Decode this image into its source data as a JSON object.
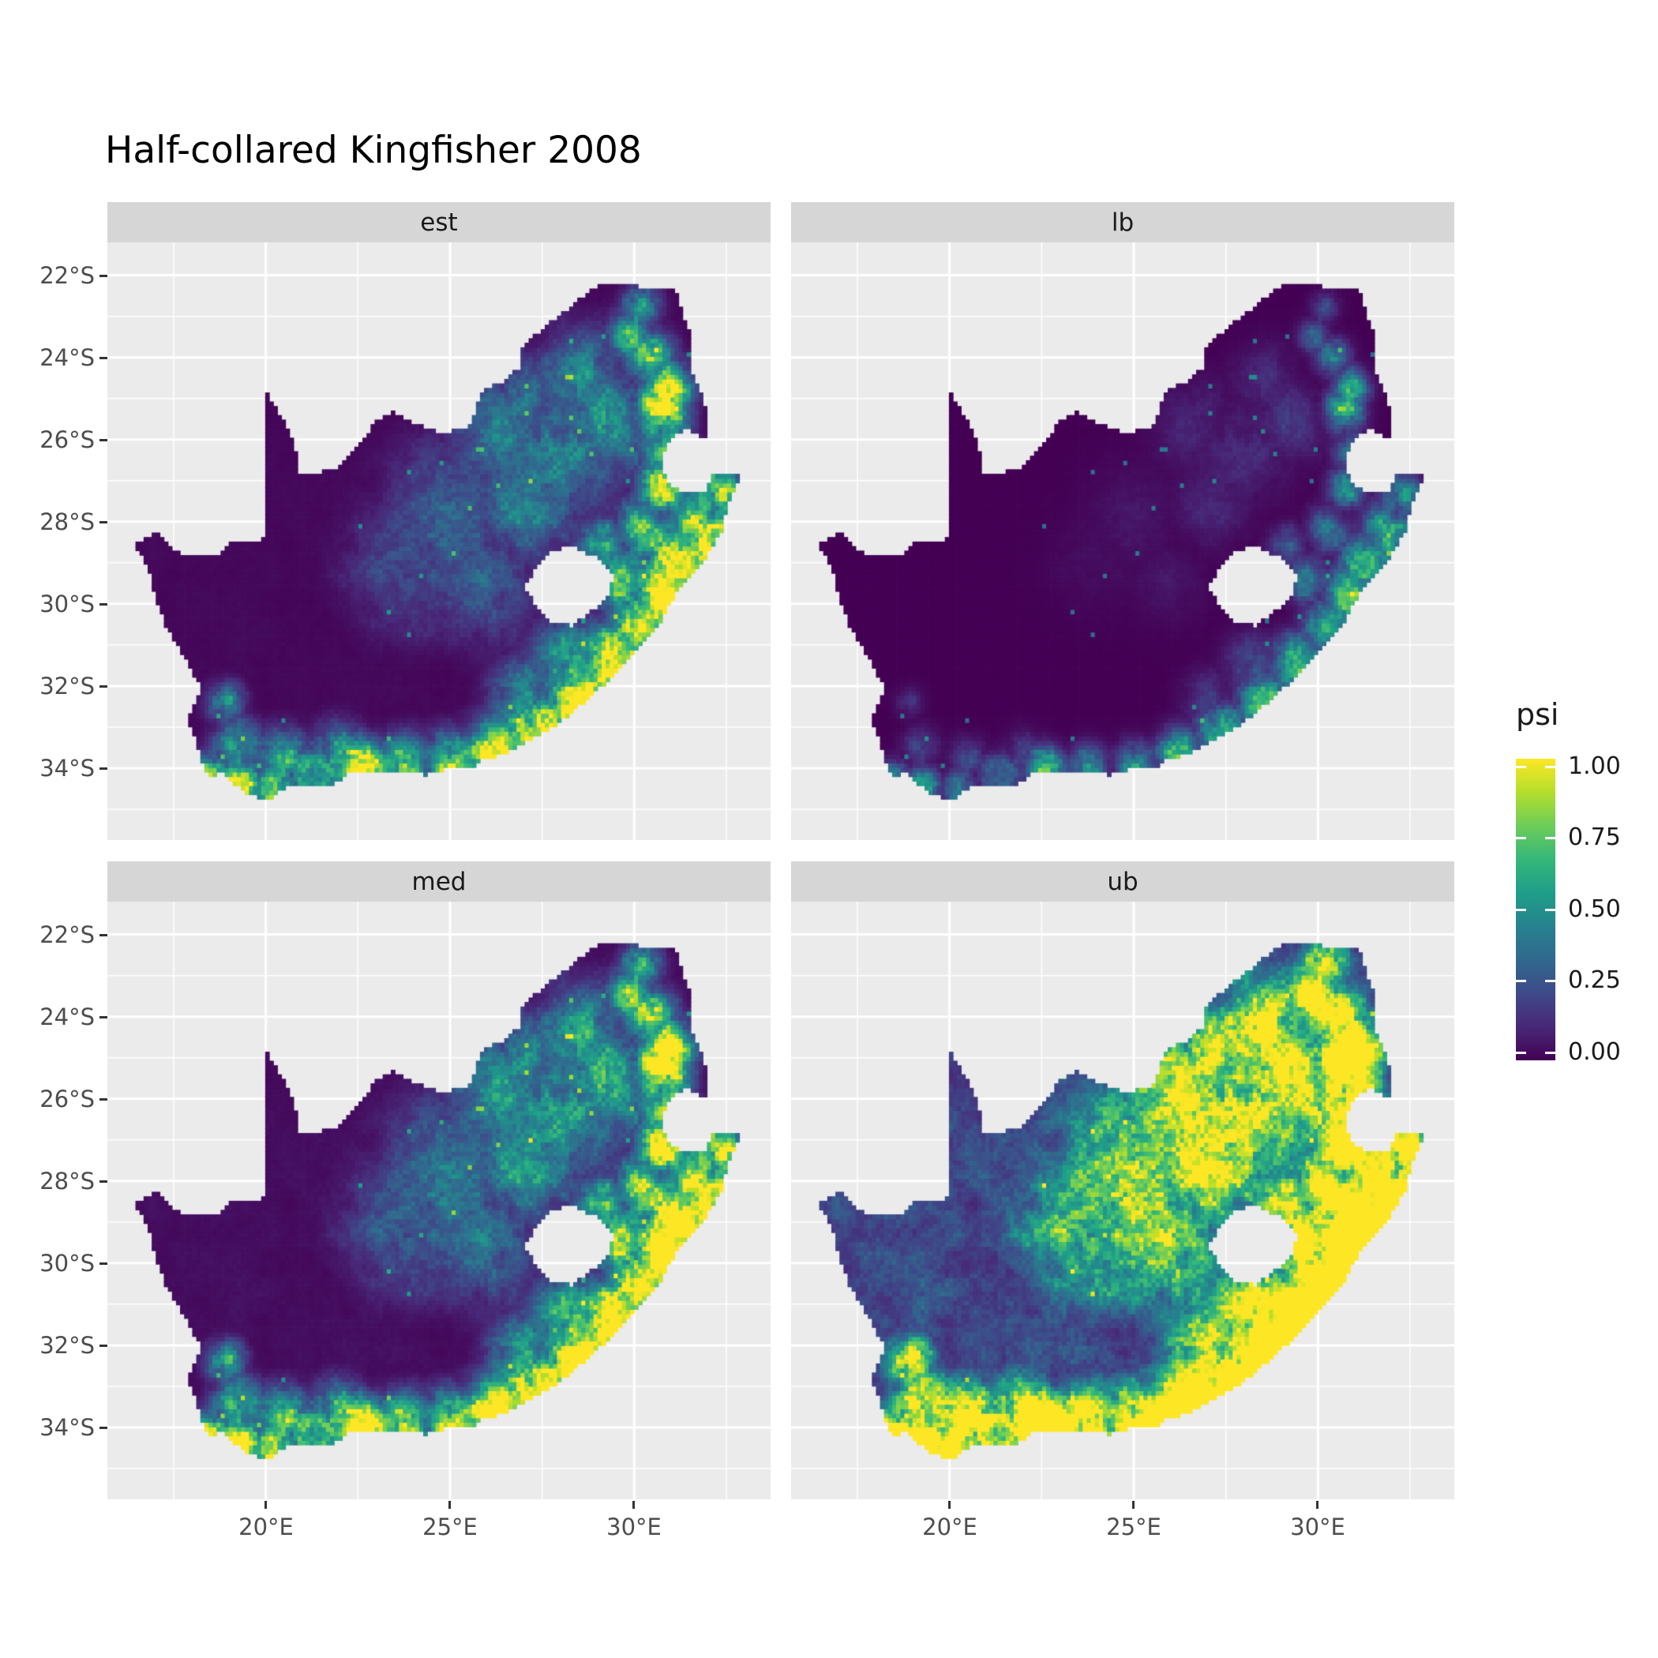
{
  "title": "Half-collared Kingfisher 2008",
  "chart_data": {
    "type": "heatmap",
    "subtype": "faceted raster map (species occupancy over South Africa)",
    "title": "Half-collared Kingfisher 2008",
    "facets": [
      {
        "key": "est",
        "label": "est"
      },
      {
        "key": "lb",
        "label": "lb"
      },
      {
        "key": "med",
        "label": "med"
      },
      {
        "key": "ub",
        "label": "ub"
      }
    ],
    "x_axis": {
      "range_lon": [
        15.7,
        33.7
      ],
      "tick_values": [
        20,
        25,
        30
      ],
      "tick_labels": [
        "20°E",
        "25°E",
        "30°E"
      ]
    },
    "y_axis": {
      "range_lat": [
        -35.75,
        -21.2
      ],
      "tick_values": [
        -22,
        -24,
        -26,
        -28,
        -30,
        -32,
        -34
      ],
      "tick_labels": [
        "22°S",
        "24°S",
        "26°S",
        "28°S",
        "30°S",
        "32°S",
        "34°S"
      ]
    },
    "legend": {
      "title": "psi",
      "tick_labels": [
        "1.00",
        "0.75",
        "0.50",
        "0.25",
        "0.00"
      ],
      "tick_values": [
        1.0,
        0.75,
        0.5,
        0.25,
        0.0
      ],
      "range": [
        0,
        1
      ],
      "position": "right"
    },
    "color_scale": {
      "name": "viridis",
      "stops": [
        {
          "t": 0.0,
          "color": "#440154"
        },
        {
          "t": 0.111,
          "color": "#482878"
        },
        {
          "t": 0.222,
          "color": "#3E4A89"
        },
        {
          "t": 0.333,
          "color": "#31688E"
        },
        {
          "t": 0.444,
          "color": "#26828E"
        },
        {
          "t": 0.556,
          "color": "#1F9E89"
        },
        {
          "t": 0.667,
          "color": "#35B779"
        },
        {
          "t": 0.778,
          "color": "#6DCD59"
        },
        {
          "t": 0.889,
          "color": "#B4DE2C"
        },
        {
          "t": 1.0,
          "color": "#FDE725"
        }
      ]
    },
    "style": {
      "panel_bg": "#EBEBEB",
      "strip_bg": "#D6D6D6",
      "grid_major": "#FFFFFF",
      "grid_minor": "#FFFFFF",
      "axis_text": "#4D4D4D",
      "strip_text": "#1A1A1A",
      "tick_mark": "#333333",
      "na_fill": "#EBEBEB"
    },
    "psi_model": {
      "description": "psi high along the southern and eastern coastline and eastern escarpment, near zero in the arid west/interior; lb < med ~ est < ub",
      "cell_deg": 0.11,
      "facet_transform": {
        "est": {
          "gain": 1.0,
          "gamma": 1.0
        },
        "lb": {
          "gain": 0.65,
          "gamma": 2.0
        },
        "med": {
          "gain": 1.15,
          "gamma": 0.9
        },
        "ub": {
          "gain": 1.5,
          "gamma": 0.5
        }
      },
      "noise": {
        "floor": 0.45,
        "amp": 1.15
      },
      "hotspots": [
        [
          18.5,
          -34.1,
          0.35,
          0.75
        ],
        [
          19.3,
          -34.4,
          0.45,
          0.9
        ],
        [
          20.3,
          -34.5,
          0.45,
          0.85
        ],
        [
          21.4,
          -34.2,
          0.5,
          0.95
        ],
        [
          22.6,
          -34.0,
          0.5,
          1.0
        ],
        [
          23.8,
          -34.0,
          0.5,
          1.0
        ],
        [
          25.0,
          -33.9,
          0.5,
          0.95
        ],
        [
          26.2,
          -33.6,
          0.55,
          0.95
        ],
        [
          27.4,
          -33.1,
          0.6,
          1.0
        ],
        [
          28.5,
          -32.4,
          0.65,
          1.0
        ],
        [
          29.5,
          -31.5,
          0.7,
          1.0
        ],
        [
          30.4,
          -30.6,
          0.7,
          1.0
        ],
        [
          30.9,
          -29.8,
          0.7,
          1.0
        ],
        [
          31.4,
          -29.0,
          0.7,
          1.0
        ],
        [
          31.9,
          -28.2,
          0.65,
          1.0
        ],
        [
          32.3,
          -27.4,
          0.55,
          0.95
        ],
        [
          29.7,
          -29.4,
          0.55,
          0.85
        ],
        [
          29.2,
          -28.6,
          0.5,
          0.7
        ],
        [
          30.3,
          -28.2,
          0.55,
          0.8
        ],
        [
          30.8,
          -27.2,
          0.5,
          0.8
        ],
        [
          30.9,
          -26.3,
          0.45,
          0.8
        ],
        [
          30.7,
          -25.3,
          0.5,
          0.95
        ],
        [
          30.9,
          -24.7,
          0.45,
          0.95
        ],
        [
          30.4,
          -24.0,
          0.45,
          0.85
        ],
        [
          29.9,
          -23.5,
          0.4,
          0.7
        ],
        [
          30.2,
          -22.8,
          0.35,
          0.65
        ],
        [
          28.0,
          -26.3,
          1.3,
          0.42
        ],
        [
          26.6,
          -25.6,
          1.1,
          0.38
        ],
        [
          29.3,
          -25.6,
          0.9,
          0.5
        ],
        [
          28.6,
          -24.6,
          0.9,
          0.4
        ],
        [
          27.2,
          -27.6,
          1.1,
          0.38
        ],
        [
          25.0,
          -27.8,
          1.2,
          0.3
        ],
        [
          24.0,
          -29.0,
          1.2,
          0.25
        ],
        [
          26.0,
          -29.5,
          1.0,
          0.3
        ],
        [
          19.2,
          -33.5,
          0.45,
          0.6
        ],
        [
          18.9,
          -32.4,
          0.35,
          0.45
        ],
        [
          20.5,
          -33.8,
          0.5,
          0.55
        ],
        [
          22.0,
          -33.6,
          0.5,
          0.5
        ],
        [
          28.2,
          -31.5,
          0.7,
          0.6
        ],
        [
          27.0,
          -32.3,
          0.6,
          0.55
        ]
      ]
    },
    "geo": {
      "south_africa_outline": [
        [
          16.45,
          -28.58
        ],
        [
          17.05,
          -28.25
        ],
        [
          17.45,
          -28.7
        ],
        [
          18.05,
          -28.87
        ],
        [
          18.65,
          -28.87
        ],
        [
          19.05,
          -28.52
        ],
        [
          19.6,
          -28.5
        ],
        [
          19.98,
          -28.42
        ],
        [
          19.98,
          -24.77
        ],
        [
          20.42,
          -25.45
        ],
        [
          20.7,
          -25.95
        ],
        [
          20.86,
          -26.45
        ],
        [
          20.83,
          -26.83
        ],
        [
          21.35,
          -26.85
        ],
        [
          21.95,
          -26.67
        ],
        [
          22.65,
          -26.02
        ],
        [
          22.92,
          -25.62
        ],
        [
          23.48,
          -25.32
        ],
        [
          24.02,
          -25.63
        ],
        [
          24.78,
          -25.83
        ],
        [
          25.42,
          -25.76
        ],
        [
          25.62,
          -25.48
        ],
        [
          25.92,
          -24.76
        ],
        [
          26.42,
          -24.64
        ],
        [
          26.87,
          -24.26
        ],
        [
          26.98,
          -23.69
        ],
        [
          27.62,
          -23.23
        ],
        [
          28.22,
          -22.83
        ],
        [
          28.87,
          -22.3
        ],
        [
          29.38,
          -22.2
        ],
        [
          29.92,
          -22.22
        ],
        [
          30.32,
          -22.35
        ],
        [
          31.12,
          -22.36
        ],
        [
          31.32,
          -22.92
        ],
        [
          31.56,
          -23.52
        ],
        [
          31.56,
          -24.42
        ],
        [
          31.87,
          -24.9
        ],
        [
          32.0,
          -25.6
        ],
        [
          31.97,
          -25.98
        ],
        [
          31.4,
          -25.74
        ],
        [
          30.98,
          -25.98
        ],
        [
          30.79,
          -26.42
        ],
        [
          30.81,
          -26.86
        ],
        [
          31.1,
          -27.2
        ],
        [
          31.6,
          -27.33
        ],
        [
          31.96,
          -27.32
        ],
        [
          32.12,
          -26.86
        ],
        [
          32.55,
          -26.86
        ],
        [
          32.9,
          -26.86
        ],
        [
          32.53,
          -27.62
        ],
        [
          32.35,
          -28.28
        ],
        [
          31.93,
          -28.92
        ],
        [
          31.28,
          -29.58
        ],
        [
          31.04,
          -29.9
        ],
        [
          30.68,
          -30.52
        ],
        [
          30.22,
          -30.98
        ],
        [
          29.6,
          -31.62
        ],
        [
          28.92,
          -32.17
        ],
        [
          28.22,
          -32.72
        ],
        [
          27.58,
          -33.12
        ],
        [
          26.98,
          -33.42
        ],
        [
          26.28,
          -33.72
        ],
        [
          25.88,
          -33.77
        ],
        [
          25.63,
          -34.02
        ],
        [
          24.98,
          -34.02
        ],
        [
          24.38,
          -34.17
        ],
        [
          23.68,
          -34.07
        ],
        [
          23.08,
          -34.12
        ],
        [
          22.38,
          -34.07
        ],
        [
          21.88,
          -34.37
        ],
        [
          21.18,
          -34.42
        ],
        [
          20.58,
          -34.47
        ],
        [
          20.0,
          -34.82
        ],
        [
          19.53,
          -34.62
        ],
        [
          19.08,
          -34.36
        ],
        [
          18.8,
          -34.1
        ],
        [
          18.46,
          -34.22
        ],
        [
          18.3,
          -33.87
        ],
        [
          18.06,
          -33.22
        ],
        [
          17.86,
          -32.77
        ],
        [
          18.26,
          -32.12
        ],
        [
          17.9,
          -31.42
        ],
        [
          17.32,
          -30.62
        ],
        [
          17.02,
          -29.92
        ],
        [
          16.86,
          -29.22
        ]
      ],
      "lesotho_hole": [
        [
          27.02,
          -29.63
        ],
        [
          27.35,
          -29.1
        ],
        [
          27.75,
          -28.68
        ],
        [
          28.35,
          -28.62
        ],
        [
          28.95,
          -28.85
        ],
        [
          29.45,
          -29.3
        ],
        [
          29.3,
          -29.75
        ],
        [
          28.9,
          -30.15
        ],
        [
          28.3,
          -30.55
        ],
        [
          27.75,
          -30.42
        ],
        [
          27.3,
          -30.0
        ]
      ]
    }
  },
  "layout_labels": {
    "row1_strip_left": "est",
    "row1_strip_right": "lb",
    "row2_strip_left": "med",
    "row2_strip_right": "ub"
  }
}
